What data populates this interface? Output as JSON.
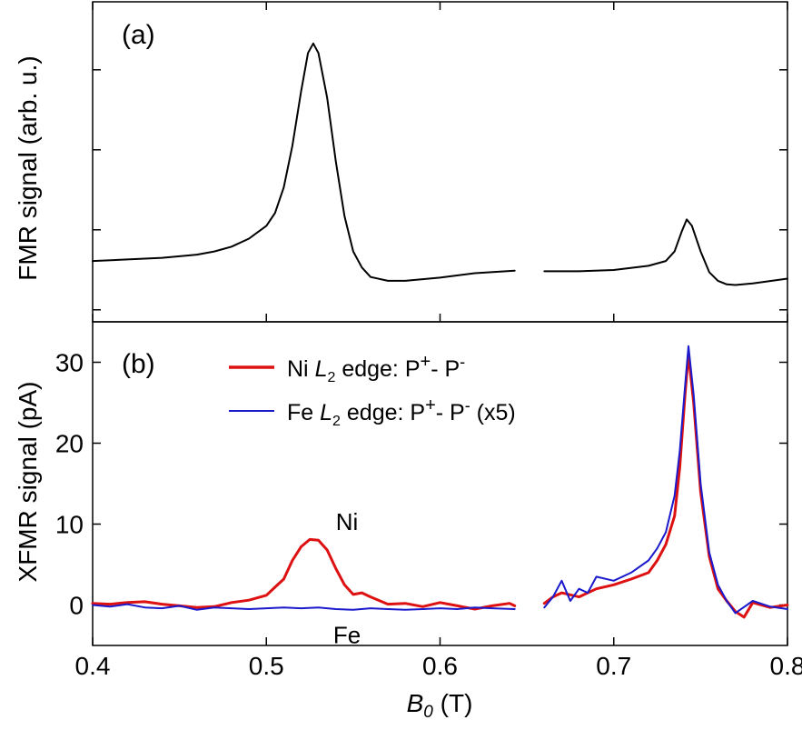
{
  "chart_data": [
    {
      "type": "line",
      "panel_label": "(a)",
      "ylabel": "FMR signal (arb. u.)",
      "xlim": [
        0.4,
        0.8
      ],
      "ylim": [
        0,
        1
      ],
      "y_tick_count": 4,
      "series": [
        {
          "name": "FMR",
          "color": "#000000",
          "segments": [
            [
              [
                0.4,
                0.19
              ],
              [
                0.42,
                0.195
              ],
              [
                0.44,
                0.2
              ],
              [
                0.46,
                0.21
              ],
              [
                0.47,
                0.22
              ],
              [
                0.48,
                0.235
              ],
              [
                0.49,
                0.26
              ],
              [
                0.5,
                0.3
              ],
              [
                0.505,
                0.34
              ],
              [
                0.51,
                0.42
              ],
              [
                0.515,
                0.55
              ],
              [
                0.52,
                0.72
              ],
              [
                0.524,
                0.84
              ],
              [
                0.527,
                0.87
              ],
              [
                0.53,
                0.84
              ],
              [
                0.535,
                0.7
              ],
              [
                0.54,
                0.5
              ],
              [
                0.545,
                0.33
              ],
              [
                0.55,
                0.22
              ],
              [
                0.555,
                0.17
              ],
              [
                0.56,
                0.14
              ],
              [
                0.57,
                0.128
              ],
              [
                0.58,
                0.128
              ],
              [
                0.6,
                0.138
              ],
              [
                0.62,
                0.152
              ],
              [
                0.643,
                0.16
              ]
            ],
            [
              [
                0.66,
                0.158
              ],
              [
                0.68,
                0.158
              ],
              [
                0.7,
                0.162
              ],
              [
                0.72,
                0.175
              ],
              [
                0.73,
                0.19
              ],
              [
                0.735,
                0.22
              ],
              [
                0.739,
                0.28
              ],
              [
                0.742,
                0.32
              ],
              [
                0.745,
                0.3
              ],
              [
                0.75,
                0.22
              ],
              [
                0.755,
                0.155
              ],
              [
                0.76,
                0.128
              ],
              [
                0.765,
                0.117
              ],
              [
                0.77,
                0.115
              ],
              [
                0.78,
                0.12
              ],
              [
                0.8,
                0.135
              ]
            ]
          ]
        }
      ]
    },
    {
      "type": "line",
      "panel_label": "(b)",
      "xlabel": "B",
      "xlabel_sub": "0",
      "xlabel_unit": " (T)",
      "ylabel": "XFMR signal (pA)",
      "xlim": [
        0.4,
        0.8
      ],
      "ylim": [
        -5,
        35
      ],
      "x_ticks": [
        0.4,
        0.5,
        0.6,
        0.7,
        0.8
      ],
      "x_tick_labels": [
        "0.4",
        "0.5",
        "0.6",
        "0.7",
        "0.8"
      ],
      "y_ticks": [
        0,
        10,
        20,
        30
      ],
      "y_tick_labels": [
        "0",
        "10",
        "20",
        "30"
      ],
      "legend": {
        "position": "top-left",
        "entries": [
          {
            "prefix": "Ni ",
            "italic": "L",
            "sub": "2",
            "suffix": " edge: P",
            "sup1": "+",
            "mid": "- P",
            "sup2": "-",
            "tail": "",
            "color": "#dd1111"
          },
          {
            "prefix": "Fe ",
            "italic": "L",
            "sub": "2",
            "suffix": " edge: P",
            "sup1": "+",
            "mid": "- P",
            "sup2": "-",
            "tail": " (x5)",
            "color": "#1a1acc"
          }
        ]
      },
      "annotations": [
        {
          "text": "Ni",
          "x": 0.537,
          "y": 9.5
        },
        {
          "text": "Fe",
          "x": 0.537,
          "y": -3.8
        }
      ],
      "series": [
        {
          "name": "Ni L2 edge: P+ - P-",
          "color": "#dd1111",
          "segments": [
            [
              [
                0.4,
                0.2
              ],
              [
                0.41,
                0.1
              ],
              [
                0.42,
                0.3
              ],
              [
                0.43,
                0.4
              ],
              [
                0.44,
                0.1
              ],
              [
                0.45,
                -0.1
              ],
              [
                0.46,
                -0.3
              ],
              [
                0.47,
                -0.2
              ],
              [
                0.48,
                0.3
              ],
              [
                0.49,
                0.6
              ],
              [
                0.5,
                1.2
              ],
              [
                0.505,
                2.2
              ],
              [
                0.51,
                3.2
              ],
              [
                0.515,
                5.5
              ],
              [
                0.52,
                7.2
              ],
              [
                0.525,
                8.1
              ],
              [
                0.53,
                8.0
              ],
              [
                0.535,
                6.8
              ],
              [
                0.54,
                4.5
              ],
              [
                0.545,
                2.5
              ],
              [
                0.55,
                1.3
              ],
              [
                0.555,
                1.5
              ],
              [
                0.56,
                1.0
              ],
              [
                0.57,
                0.1
              ],
              [
                0.58,
                0.2
              ],
              [
                0.59,
                -0.2
              ],
              [
                0.6,
                0.3
              ],
              [
                0.61,
                -0.1
              ],
              [
                0.62,
                -0.5
              ],
              [
                0.63,
                -0.1
              ],
              [
                0.64,
                0.2
              ],
              [
                0.643,
                -0.1
              ]
            ],
            [
              [
                0.66,
                0.2
              ],
              [
                0.665,
                1.0
              ],
              [
                0.67,
                1.5
              ],
              [
                0.68,
                1.0
              ],
              [
                0.69,
                2.0
              ],
              [
                0.7,
                2.5
              ],
              [
                0.71,
                3.2
              ],
              [
                0.72,
                4.0
              ],
              [
                0.725,
                5.5
              ],
              [
                0.73,
                7.5
              ],
              [
                0.735,
                11.0
              ],
              [
                0.738,
                17.0
              ],
              [
                0.741,
                26.0
              ],
              [
                0.743,
                31.0
              ],
              [
                0.746,
                25.0
              ],
              [
                0.75,
                14.0
              ],
              [
                0.755,
                6.0
              ],
              [
                0.76,
                2.0
              ],
              [
                0.765,
                0.5
              ],
              [
                0.77,
                -0.8
              ],
              [
                0.775,
                -1.5
              ],
              [
                0.78,
                0.3
              ],
              [
                0.79,
                -0.3
              ],
              [
                0.8,
                0.0
              ]
            ]
          ]
        },
        {
          "name": "Fe L2 edge: P+ - P- (x5)",
          "color": "#1a1acc",
          "segments": [
            [
              [
                0.4,
                0.0
              ],
              [
                0.41,
                -0.2
              ],
              [
                0.42,
                0.1
              ],
              [
                0.43,
                -0.3
              ],
              [
                0.44,
                -0.4
              ],
              [
                0.45,
                -0.1
              ],
              [
                0.46,
                -0.6
              ],
              [
                0.47,
                -0.3
              ],
              [
                0.48,
                -0.4
              ],
              [
                0.49,
                -0.5
              ],
              [
                0.5,
                -0.4
              ],
              [
                0.51,
                -0.3
              ],
              [
                0.52,
                -0.4
              ],
              [
                0.53,
                -0.3
              ],
              [
                0.54,
                -0.5
              ],
              [
                0.55,
                -0.6
              ],
              [
                0.56,
                -0.4
              ],
              [
                0.57,
                -0.5
              ],
              [
                0.58,
                -0.6
              ],
              [
                0.59,
                -0.5
              ],
              [
                0.6,
                -0.4
              ],
              [
                0.61,
                -0.5
              ],
              [
                0.62,
                -0.3
              ],
              [
                0.63,
                -0.4
              ],
              [
                0.643,
                -0.5
              ]
            ],
            [
              [
                0.66,
                -0.3
              ],
              [
                0.665,
                1.0
              ],
              [
                0.67,
                3.0
              ],
              [
                0.675,
                0.5
              ],
              [
                0.68,
                2.0
              ],
              [
                0.685,
                1.5
              ],
              [
                0.69,
                3.5
              ],
              [
                0.7,
                3.0
              ],
              [
                0.71,
                4.0
              ],
              [
                0.72,
                5.5
              ],
              [
                0.725,
                7.0
              ],
              [
                0.73,
                9.0
              ],
              [
                0.735,
                13.5
              ],
              [
                0.738,
                19.0
              ],
              [
                0.741,
                27.0
              ],
              [
                0.743,
                32.0
              ],
              [
                0.746,
                26.0
              ],
              [
                0.75,
                15.0
              ],
              [
                0.755,
                6.5
              ],
              [
                0.76,
                2.5
              ],
              [
                0.765,
                0.5
              ],
              [
                0.77,
                -1.0
              ],
              [
                0.78,
                0.5
              ],
              [
                0.79,
                -0.2
              ],
              [
                0.8,
                -0.5
              ]
            ]
          ]
        }
      ]
    }
  ]
}
